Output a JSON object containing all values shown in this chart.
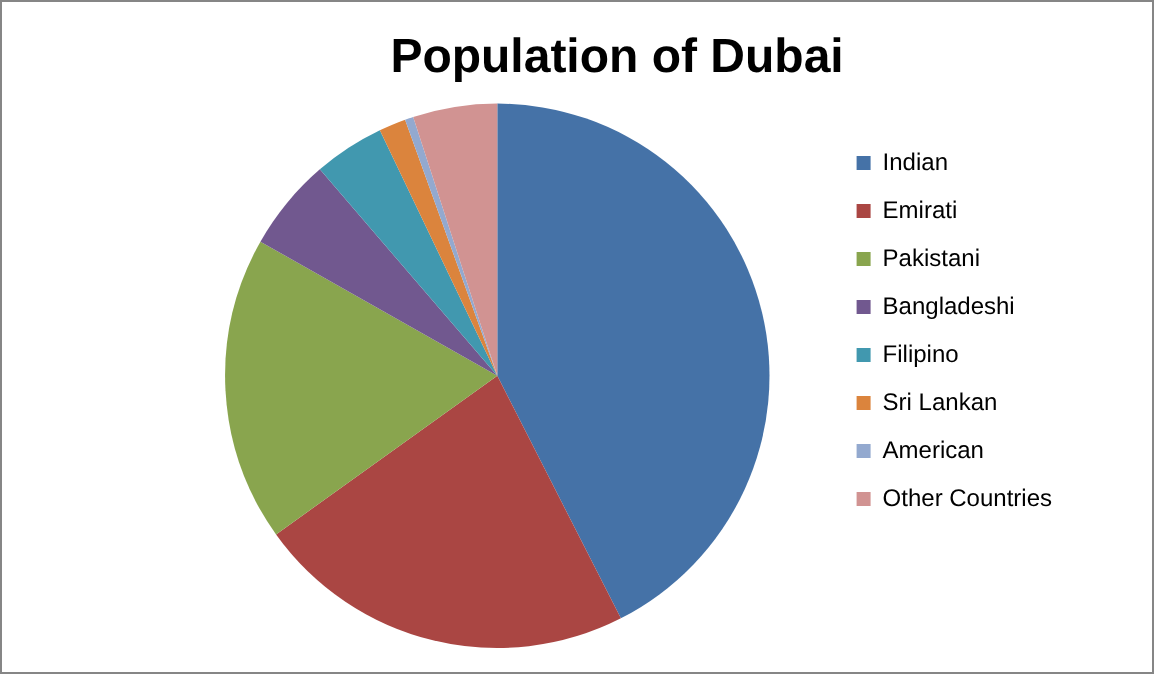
{
  "chart_data": {
    "type": "pie",
    "title": "Population of Dubai",
    "categories": [
      "Indian",
      "Emirati",
      "Pakistani",
      "Bangladeshi",
      "Filipino",
      "Sri Lankan",
      "American",
      "Other Countries"
    ],
    "values": [
      42.5,
      22.6,
      18.1,
      5.5,
      4.2,
      1.6,
      0.5,
      5.0
    ],
    "colors": [
      "#4572a7",
      "#aa4643",
      "#89a54e",
      "#71588f",
      "#4198af",
      "#db843d",
      "#93a9cf",
      "#d19392"
    ],
    "legend": "right"
  }
}
